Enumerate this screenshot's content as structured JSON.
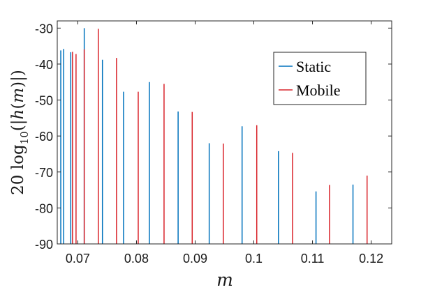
{
  "chart_data": {
    "type": "line",
    "title": "",
    "xlabel": "m",
    "ylabel": "20 log10(|h(m)|)",
    "xlim": [
      0.0665,
      0.1235
    ],
    "ylim": [
      -90,
      -28
    ],
    "xticks": [
      0.07,
      0.08,
      0.09,
      0.1,
      0.11,
      0.12
    ],
    "xtick_labels": [
      "0.07",
      "0.08",
      "0.09",
      "0.1",
      "0.11",
      "0.12"
    ],
    "yticks": [
      -90,
      -80,
      -70,
      -60,
      -50,
      -40,
      -30
    ],
    "ytick_labels": [
      "-90",
      "-80",
      "-70",
      "-60",
      "-50",
      "-40",
      "-30"
    ],
    "grid": false,
    "legend_position": "top-right",
    "series": [
      {
        "name": "Static",
        "color": "#0072BD",
        "style": "stem",
        "baseline": -90,
        "points": [
          {
            "x": 0.0671,
            "y": -36.2
          },
          {
            "x": 0.0676,
            "y": -35.8
          },
          {
            "x": 0.0688,
            "y": -36.7
          },
          {
            "x": 0.0711,
            "y": -30.0
          },
          {
            "x": 0.0742,
            "y": -38.8
          },
          {
            "x": 0.0778,
            "y": -47.7
          },
          {
            "x": 0.0822,
            "y": -45.0
          },
          {
            "x": 0.0871,
            "y": -53.2
          },
          {
            "x": 0.0924,
            "y": -62.0
          },
          {
            "x": 0.098,
            "y": -57.3
          },
          {
            "x": 0.1042,
            "y": -64.2
          },
          {
            "x": 0.1106,
            "y": -75.4
          },
          {
            "x": 0.1169,
            "y": -73.5
          }
        ]
      },
      {
        "name": "Mobile",
        "color": "#D9232A",
        "style": "stem",
        "baseline": -90,
        "points": [
          {
            "x": 0.0691,
            "y": -36.6
          },
          {
            "x": 0.0697,
            "y": -37.2
          },
          {
            "x": 0.0711,
            "y": -35.9
          },
          {
            "x": 0.0735,
            "y": -30.2
          },
          {
            "x": 0.0766,
            "y": -38.3
          },
          {
            "x": 0.0803,
            "y": -47.7
          },
          {
            "x": 0.0847,
            "y": -45.5
          },
          {
            "x": 0.0895,
            "y": -53.3
          },
          {
            "x": 0.0948,
            "y": -62.1
          },
          {
            "x": 0.1005,
            "y": -57.0
          },
          {
            "x": 0.1066,
            "y": -64.7
          },
          {
            "x": 0.1129,
            "y": -73.6
          },
          {
            "x": 0.1193,
            "y": -71.0
          }
        ]
      }
    ]
  }
}
